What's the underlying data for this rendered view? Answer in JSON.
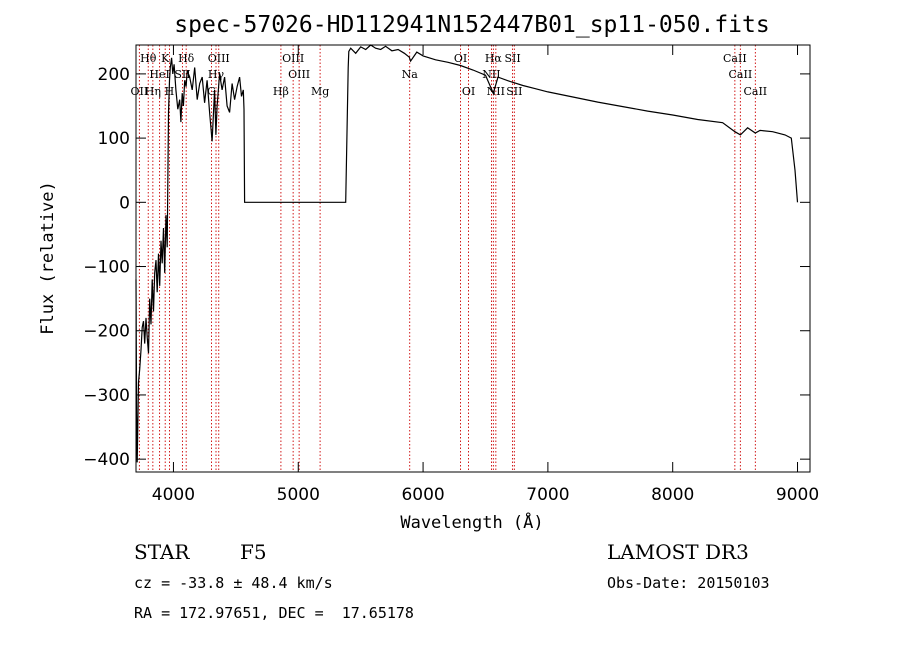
{
  "chart_data": {
    "type": "line",
    "title": "spec-57026-HD112941N152447B01_sp11-050.fits",
    "xlabel": "Wavelength (Å)",
    "ylabel": "Flux (relative)",
    "xlim": [
      3700,
      9100
    ],
    "ylim": [
      -420,
      245
    ],
    "xticks": [
      4000,
      5000,
      6000,
      7000,
      8000,
      9000
    ],
    "yticks": [
      -400,
      -300,
      -200,
      -100,
      0,
      100,
      200
    ],
    "series": [
      {
        "x": [
          3700,
          3705,
          3710,
          3720,
          3730,
          3740,
          3750,
          3760,
          3770,
          3780,
          3790,
          3800,
          3810,
          3820,
          3830,
          3840,
          3850,
          3860,
          3870,
          3880,
          3890,
          3900,
          3910,
          3920,
          3930,
          3940,
          3950,
          3960,
          3968,
          3975,
          3985,
          3995,
          4005,
          4020,
          4035,
          4050,
          4060,
          4070,
          4080,
          4090,
          4101,
          4110,
          4130,
          4150,
          4170,
          4190,
          4210,
          4230,
          4250,
          4270,
          4290,
          4310,
          4330,
          4340,
          4350,
          4370,
          4390,
          4410,
          4430,
          4450,
          4470,
          4490,
          4510,
          4530,
          4545,
          4560,
          4565,
          4570,
          4580,
          4700,
          4800,
          4900,
          5000,
          5100,
          5200,
          5300,
          5380,
          5400,
          5405,
          5420,
          5460,
          5500,
          5540,
          5580,
          5620,
          5660,
          5700,
          5750,
          5800,
          5850,
          5890,
          5900,
          5950,
          6000,
          6100,
          6200,
          6300,
          6400,
          6500,
          6563,
          6600,
          6700,
          6800,
          6900,
          7000,
          7200,
          7400,
          7600,
          7800,
          8000,
          8200,
          8400,
          8498,
          8542,
          8600,
          8662,
          8700,
          8800,
          8900,
          8950,
          8980,
          9000
        ],
        "y": [
          -120,
          -330,
          -405,
          -280,
          -260,
          -230,
          -195,
          -185,
          -220,
          -180,
          -210,
          -235,
          -150,
          -190,
          -120,
          -170,
          -110,
          -90,
          -140,
          -80,
          -130,
          -60,
          -95,
          -40,
          -110,
          -20,
          -70,
          140,
          190,
          210,
          225,
          200,
          215,
          175,
          145,
          160,
          125,
          170,
          150,
          190,
          180,
          205,
          195,
          175,
          210,
          160,
          185,
          195,
          155,
          190,
          140,
          95,
          175,
          105,
          150,
          200,
          175,
          195,
          150,
          140,
          185,
          160,
          180,
          195,
          165,
          175,
          145,
          0,
          0,
          0,
          0,
          0,
          0,
          0,
          0,
          0,
          0,
          210,
          235,
          240,
          232,
          242,
          238,
          245,
          240,
          238,
          243,
          236,
          238,
          232,
          226,
          220,
          234,
          228,
          222,
          218,
          213,
          206,
          198,
          170,
          195,
          188,
          182,
          177,
          172,
          164,
          156,
          149,
          142,
          136,
          129,
          124,
          110,
          105,
          116,
          108,
          112,
          110,
          105,
          100,
          50,
          0
        ]
      }
    ],
    "lines": [
      {
        "name": "Hθ",
        "wl": 3798,
        "row": 1
      },
      {
        "name": "OII",
        "wl": 3727,
        "row": 3
      },
      {
        "name": "HeI",
        "wl": 3889,
        "row": 2
      },
      {
        "name": "Hη",
        "wl": 3835,
        "row": 3
      },
      {
        "name": "K",
        "wl": 3934,
        "row": 1
      },
      {
        "name": "H",
        "wl": 3968,
        "row": 3
      },
      {
        "name": "SII",
        "wl": 4072,
        "row": 2
      },
      {
        "name": "Hδ",
        "wl": 4102,
        "row": 1
      },
      {
        "name": "OIII",
        "wl": 4363,
        "row": 1
      },
      {
        "name": "Hγ",
        "wl": 4341,
        "row": 2
      },
      {
        "name": "G",
        "wl": 4305,
        "row": 3
      },
      {
        "name": "OIII",
        "wl": 4959,
        "row": 1
      },
      {
        "name": "OIII",
        "wl": 5007,
        "row": 2
      },
      {
        "name": "Hβ",
        "wl": 4861,
        "row": 3
      },
      {
        "name": "Mg",
        "wl": 5175,
        "row": 3
      },
      {
        "name": "Na",
        "wl": 5893,
        "row": 2
      },
      {
        "name": "OI",
        "wl": 6300,
        "row": 1
      },
      {
        "name": "OI",
        "wl": 6364,
        "row": 3
      },
      {
        "name": "Hα",
        "wl": 6563,
        "row": 1
      },
      {
        "name": "NII",
        "wl": 6548,
        "row": 2
      },
      {
        "name": "NII",
        "wl": 6583,
        "row": 3
      },
      {
        "name": "SII",
        "wl": 6717,
        "row": 1
      },
      {
        "name": "SII",
        "wl": 6731,
        "row": 3
      },
      {
        "name": "CaII",
        "wl": 8498,
        "row": 1
      },
      {
        "name": "CaII",
        "wl": 8542,
        "row": 2
      },
      {
        "name": "CaII",
        "wl": 8662,
        "row": 3
      }
    ],
    "grid": false,
    "line_color": "#000000",
    "marker_color": "#cc0000"
  },
  "info": {
    "class": "STAR",
    "subclass": "F5",
    "survey": "LAMOST DR3",
    "cz": "cz = -33.8 ± 48.4 km/s",
    "obsdate": "Obs-Date: 20150103",
    "radec": "RA = 172.97651, DEC =  17.65178"
  }
}
